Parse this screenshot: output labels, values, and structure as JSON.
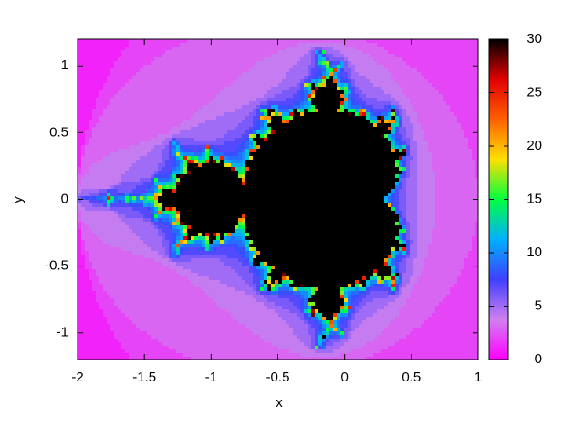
{
  "chart_data": {
    "type": "heatmap",
    "xlabel": "x",
    "ylabel": "y",
    "xlim": [
      -2,
      1
    ],
    "xticks": [
      -2,
      -1.5,
      -1,
      -0.5,
      0,
      0.5,
      1
    ],
    "ylim": [
      -1.2,
      1.2
    ],
    "yticks": [
      -1,
      -0.5,
      0,
      0.5,
      1
    ],
    "clim": [
      0,
      30
    ],
    "cticks": [
      0,
      5,
      10,
      15,
      20,
      25,
      30
    ],
    "palette": [
      "#ff00ff",
      "#d080f0",
      "#4040ff",
      "#00b0ff",
      "#00ff40",
      "#ffe000",
      "#ff6000",
      "#e00000",
      "#000000"
    ]
  }
}
